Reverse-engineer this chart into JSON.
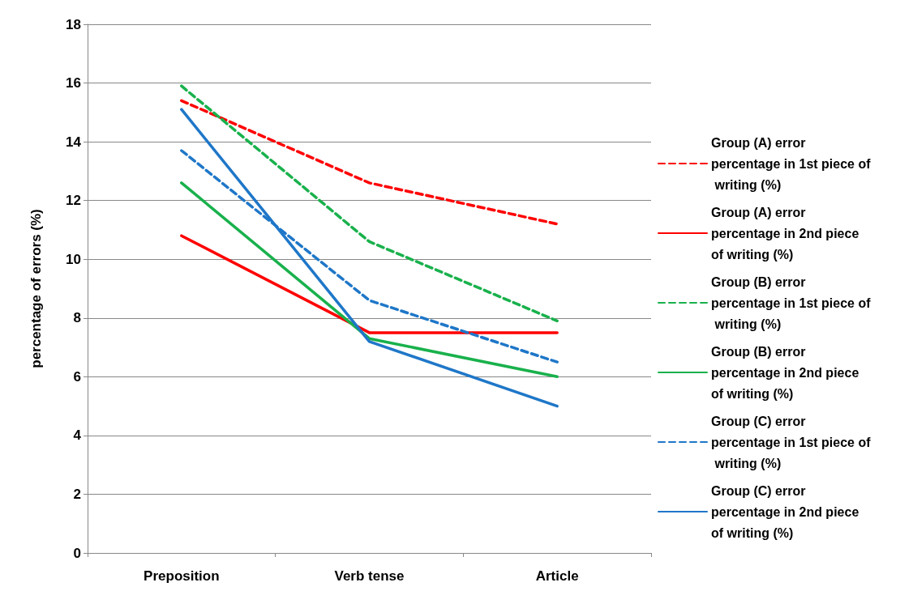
{
  "chart_data": {
    "type": "line",
    "ylabel": "percentage of errors (%)",
    "categories": [
      "Preposition",
      "Verb tense",
      "Article"
    ],
    "ylim": [
      0,
      18
    ],
    "yticks": [
      0,
      2,
      4,
      6,
      8,
      10,
      12,
      14,
      16,
      18
    ],
    "grid": "y",
    "legend": "right",
    "marker": "none",
    "series": [
      {
        "name": "Group (A) error percentage in 1st piece of writing (%)",
        "color": "#ff0000",
        "line_style": "dashed",
        "values": [
          15.4,
          12.6,
          11.2
        ]
      },
      {
        "name": "Group (A) error percentage in 2nd piece of writing (%)",
        "color": "#ff0000",
        "line_style": "solid",
        "values": [
          10.8,
          7.5,
          7.5
        ]
      },
      {
        "name": "Group (B) error percentage in 1st piece of writing (%)",
        "color": "#19b14c",
        "line_style": "dashed",
        "values": [
          15.9,
          10.6,
          7.9
        ]
      },
      {
        "name": "Group (B) error percentage in 2nd piece of writing (%)",
        "color": "#19b14c",
        "line_style": "solid",
        "values": [
          12.6,
          7.3,
          6.0
        ]
      },
      {
        "name": "Group (C) error percentage in 1st piece of writing (%)",
        "color": "#1f77c8",
        "line_style": "dashed",
        "values": [
          13.7,
          8.6,
          6.5
        ]
      },
      {
        "name": "Group (C) error percentage in 2nd piece of writing (%)",
        "color": "#1f77c8",
        "line_style": "solid",
        "values": [
          15.1,
          7.2,
          5.0
        ]
      }
    ]
  }
}
